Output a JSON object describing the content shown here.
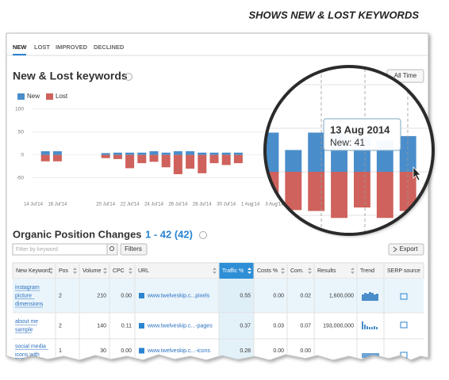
{
  "heading": "SHOWS NEW & LOST KEYWORDS",
  "tabs": [
    "NEW",
    "LOST",
    "IMPROVED",
    "DECLINED"
  ],
  "section_title": "New & Lost keywords",
  "range_button": "All Time",
  "chart_data": {
    "type": "bar",
    "categories": [
      "14 Jul'14",
      null,
      "16 Jul'14",
      null,
      null,
      null,
      "20 Jul'14",
      null,
      "22 Jul'14",
      null,
      "24 Jul'14",
      null,
      "26 Jul'14",
      null,
      "28 Jul'14",
      null,
      "30 Jul'14",
      null,
      "1 Aug'14",
      null,
      "3 Aug'14",
      null,
      null,
      null,
      null,
      null,
      null,
      null,
      null,
      null,
      null
    ],
    "series": [
      {
        "name": "New",
        "color": "#4a8dcb",
        "values": [
          null,
          8,
          8,
          null,
          null,
          null,
          4,
          5,
          5,
          5,
          8,
          5,
          8,
          8,
          5,
          5,
          5,
          5,
          null,
          null,
          null,
          null,
          null,
          null,
          45,
          25,
          45,
          45,
          40,
          36,
          41
        ]
      },
      {
        "name": "Lost",
        "color": "#cf625c",
        "values": [
          null,
          -14,
          -14,
          null,
          null,
          null,
          -7,
          -9,
          -29,
          -18,
          -15,
          -27,
          -42,
          -30,
          -40,
          -18,
          -22,
          -18,
          null,
          null,
          null,
          null,
          null,
          null,
          -41,
          -44,
          -45,
          -53,
          -41,
          -53,
          -45
        ]
      }
    ],
    "ylim": [
      -80,
      110
    ],
    "yticks": [
      -50,
      0,
      50,
      100
    ],
    "grid": true,
    "legend": "top-left",
    "tooltip": {
      "title": "13 Aug 2014",
      "text": "New: 41"
    }
  },
  "table": {
    "title": "Organic Position Changes",
    "count": "1 - 42 (42)",
    "filter_placeholder": "Filter by keyword",
    "filters_button": "Filters",
    "export_button": "Export",
    "columns": [
      "New Keyword",
      "Pos",
      "Volume",
      "CPC",
      "URL",
      "Traffic %",
      "Costs %",
      "Com.",
      "Results",
      "Trend",
      "SERP source"
    ],
    "rows": [
      [
        [
          "instagram",
          "picture",
          "dimensions"
        ],
        "2",
        "210",
        "0.00",
        "www.twelveskip.c...pixels",
        "0.55",
        "0.00",
        "0.02",
        "1,600,000"
      ],
      [
        [
          "about me",
          "sample"
        ],
        "2",
        "140",
        "0.11",
        "www.twelveskip.c...-pages",
        "0.37",
        "0.03",
        "0.07",
        "193,000,000"
      ],
      [
        [
          "social media",
          "icons with"
        ],
        "1",
        "30",
        "0.00",
        "www.twelveskip.c...-icons",
        "0.28",
        "0.00",
        "0.00"
      ]
    ]
  }
}
